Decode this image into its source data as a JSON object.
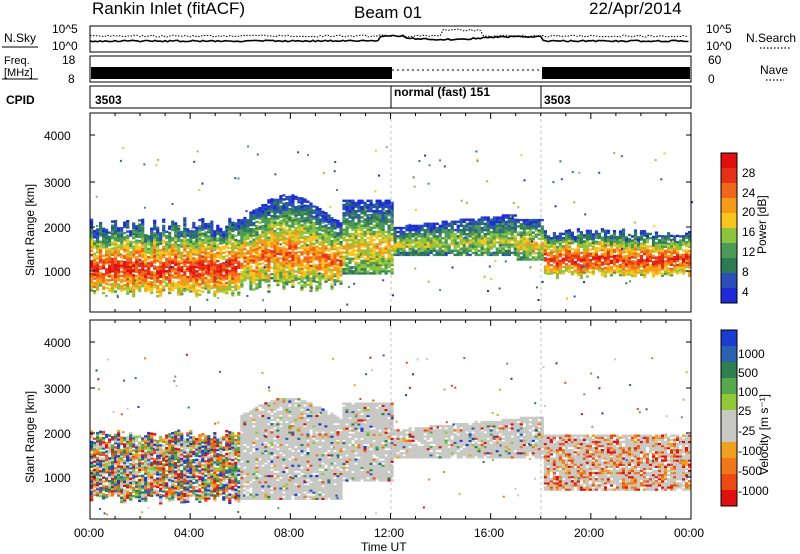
{
  "header": {
    "station": "Rankin Inlet (fitACF)",
    "beam": "Beam 01",
    "date": "22/Apr/2014"
  },
  "sky_panel": {
    "left_label": "N.Sky",
    "right_label": "N.Search",
    "left_ticks": [
      "10^5",
      "10^0"
    ],
    "right_ticks": [
      "10^5",
      "10^0"
    ]
  },
  "freq_panel": {
    "left_label_line1": "Freq.",
    "left_label_line2": "[MHz]",
    "right_label": "Nave",
    "left_ticks": [
      "18",
      "8"
    ],
    "right_ticks": [
      "60",
      "0"
    ]
  },
  "cpid_panel": {
    "label": "CPID",
    "segments": [
      {
        "text": "3503",
        "start_hour": 0
      },
      {
        "text": "normal (fast) 151",
        "start_hour": 12
      },
      {
        "text": "3503",
        "start_hour": 18
      }
    ]
  },
  "power_panel": {
    "ylabel": "Slant Range [km]",
    "yticks": [
      "4000",
      "3000",
      "2000",
      "1000"
    ],
    "colorbar_label": "Power [dB]",
    "colorbar_ticks": [
      "28",
      "24",
      "20",
      "16",
      "12",
      "8",
      "4"
    ],
    "colors": [
      "#1c2bd6",
      "#2a4fb8",
      "#2e7a55",
      "#4c9a57",
      "#8cc43e",
      "#f7c520",
      "#f59a1a",
      "#f0671a",
      "#e63018",
      "#e01010"
    ]
  },
  "velocity_panel": {
    "ylabel": "Slant Range [km]",
    "yticks": [
      "4000",
      "3000",
      "2000",
      "1000"
    ],
    "colorbar_label": "Velocity [m s⁻¹]",
    "colorbar_ticks": [
      "1000",
      "500",
      "100",
      "25",
      "-25",
      "-100",
      "-500",
      "-1000"
    ],
    "colors": [
      "#1a3cd0",
      "#2a62b0",
      "#2e7e50",
      "#56a84e",
      "#90c83a",
      "#c8c8c4",
      "#c8c8c4",
      "#f0a020",
      "#f07818",
      "#ec4a14",
      "#e01010"
    ]
  },
  "xaxis": {
    "label": "Time UT",
    "ticks": [
      "00:00",
      "04:00",
      "08:00",
      "12:00",
      "16:00",
      "20:00",
      "00:00"
    ]
  },
  "chart_data": [
    {
      "type": "heatmap",
      "title": "Power",
      "xlabel": "Time UT",
      "ylabel": "Slant Range [km]",
      "ylim": [
        180,
        4500
      ],
      "xlim_hours": [
        0,
        24
      ],
      "colorbar": "Power [dB]",
      "color_scale": [
        0,
        30
      ],
      "echo_bands": [
        {
          "t_start": 0,
          "t_end": 6,
          "range_min_km": 500,
          "range_max_km": 2100,
          "peak_power_db": 28
        },
        {
          "t_start": 6,
          "t_end": 12,
          "range_min_km": 600,
          "range_max_km": 2800,
          "peak_power_db": 26
        },
        {
          "t_start": 12,
          "t_end": 18,
          "range_min_km": 1400,
          "range_max_km": 2300,
          "peak_power_db": 22
        },
        {
          "t_start": 18,
          "t_end": 24,
          "range_min_km": 900,
          "range_max_km": 2000,
          "peak_power_db": 28
        }
      ]
    },
    {
      "type": "heatmap",
      "title": "Velocity",
      "xlabel": "Time UT",
      "ylabel": "Slant Range [km]",
      "ylim": [
        180,
        4500
      ],
      "xlim_hours": [
        0,
        24
      ],
      "colorbar": "Velocity [m s⁻¹]",
      "color_scale": [
        -1000,
        1000
      ],
      "echo_bands": [
        {
          "t_start": 0,
          "t_end": 6,
          "range_min_km": 500,
          "range_max_km": 2000,
          "typical_velocity": 300
        },
        {
          "t_start": 6,
          "t_end": 12,
          "range_min_km": 600,
          "range_max_km": 2900,
          "typical_velocity": 0
        },
        {
          "t_start": 12,
          "t_end": 18,
          "range_min_km": 1400,
          "range_max_km": 2400,
          "typical_velocity": 0
        },
        {
          "t_start": 18,
          "t_end": 24,
          "range_min_km": 800,
          "range_max_km": 2100,
          "typical_velocity": -100
        }
      ]
    }
  ]
}
